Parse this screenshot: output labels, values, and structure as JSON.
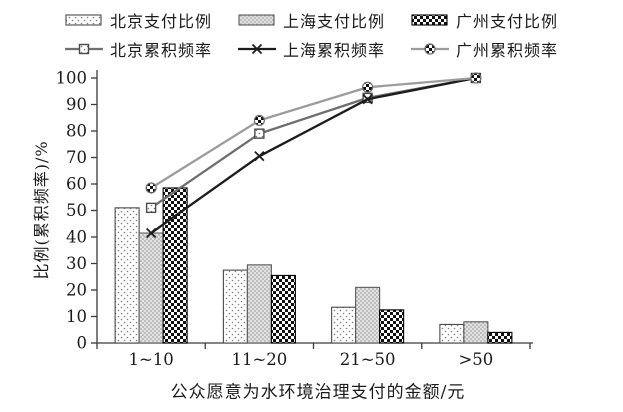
{
  "chart_data": {
    "type": "bar",
    "subtype": "combo-bar-line-pareto",
    "categories": [
      "1~10",
      "11~20",
      "21~50",
      ">50"
    ],
    "series": [
      {
        "name": "北京支付比例",
        "kind": "bar",
        "pattern": "sparse-dots",
        "values": [
          51,
          27.5,
          13.5,
          7
        ]
      },
      {
        "name": "上海支付比例",
        "kind": "bar",
        "pattern": "gray-halftone",
        "values": [
          41.5,
          29.5,
          21,
          8
        ]
      },
      {
        "name": "广州支付比例",
        "kind": "bar",
        "pattern": "black-checker",
        "values": [
          58.5,
          25.5,
          12.5,
          4
        ]
      },
      {
        "name": "北京累积频率",
        "kind": "line",
        "marker": "open-square",
        "color": "#6e6e6e",
        "values": [
          51,
          79,
          92.5,
          100
        ]
      },
      {
        "name": "上海累积频率",
        "kind": "line",
        "marker": "x",
        "color": "#1c1c1c",
        "values": [
          41.5,
          70.5,
          92,
          100
        ]
      },
      {
        "name": "广州累积频率",
        "kind": "line",
        "marker": "checker-circle",
        "color": "#9c9c9c",
        "values": [
          58.5,
          84,
          96.5,
          100
        ]
      }
    ],
    "xlabel": "公众愿意为水环境治理支付的金额/元",
    "ylabel": "比例(累积频率)/%",
    "ylim": [
      0,
      100
    ],
    "ytick_step": 10,
    "yticks": [
      0,
      10,
      20,
      30,
      40,
      50,
      60,
      70,
      80,
      90,
      100
    ],
    "legend_position": "top",
    "grid": false,
    "axis_color": "#3a3a3a",
    "background_color": "#ffffff"
  }
}
